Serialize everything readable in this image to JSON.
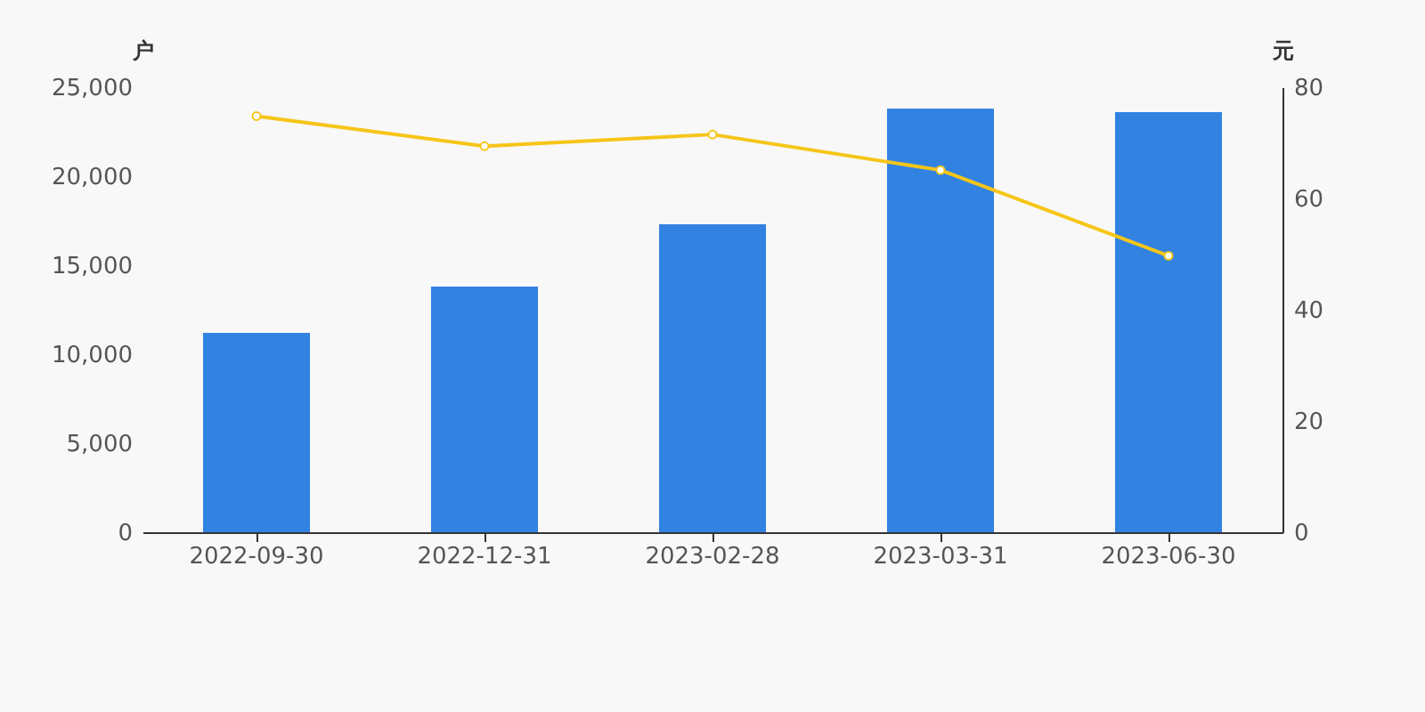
{
  "chart_data": {
    "type": "bar",
    "categories": [
      "2022-09-30",
      "2022-12-31",
      "2023-02-28",
      "2023-03-31",
      "2023-06-30"
    ],
    "ylabel": "户",
    "y2label": "元",
    "ylim": [
      0,
      25000
    ],
    "yticks": [
      {
        "value": 0,
        "label": "0"
      },
      {
        "value": 5000,
        "label": "5,000"
      },
      {
        "value": 10000,
        "label": "10,000"
      },
      {
        "value": 15000,
        "label": "15,000"
      },
      {
        "value": 20000,
        "label": "20,000"
      },
      {
        "value": 25000,
        "label": "25,000"
      }
    ],
    "y2lim": [
      0,
      80
    ],
    "y2ticks": [
      0,
      20,
      40,
      60,
      80
    ],
    "grid": false,
    "series": [
      {
        "color": "#3282e2",
        "values": [
          11200,
          13800,
          17300,
          23800,
          23600
        ]
      },
      {
        "type": "line",
        "axis": "y2",
        "color": "#f5c518",
        "marker": "circle",
        "values": [
          74.8,
          69.4,
          71.5,
          65.1,
          49.7
        ]
      }
    ]
  }
}
